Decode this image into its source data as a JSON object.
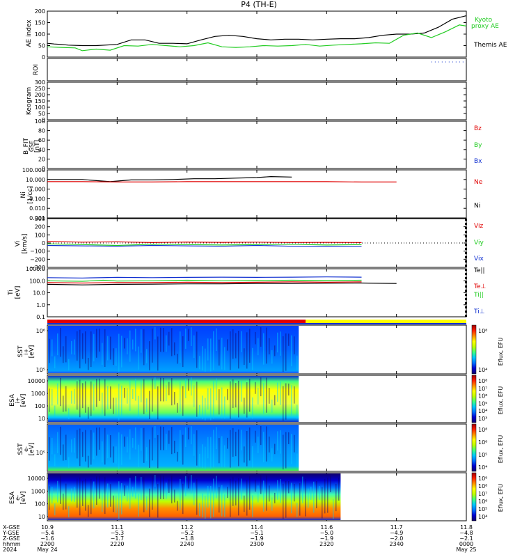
{
  "title": "P4 (TH-E)",
  "colors": {
    "black": "#000000",
    "red": "#e00000",
    "green": "#22cc22",
    "blue": "#1030d0",
    "yellow": "#ffff00",
    "cbar": [
      "#10006a",
      "#0000d0",
      "#0070ff",
      "#00c8ff",
      "#40ff80",
      "#c0ff00",
      "#ffff00",
      "#ff9000",
      "#ff2000",
      "#a00000"
    ]
  },
  "chart_data": [
    {
      "type": "line",
      "panel": "ae",
      "ylabel": "AE index",
      "ylim": [
        0,
        200
      ],
      "yticks": [
        "200",
        "150",
        "100",
        "50",
        "0"
      ],
      "legend": [
        "Kyoto",
        "proxy AE",
        "Themis AE"
      ],
      "series": [
        {
          "name": "Themis AE",
          "color": "#000000",
          "x": [
            0,
            0.1,
            0.2,
            0.3,
            0.5,
            0.7,
            1.0,
            1.2,
            1.4,
            1.6,
            1.8,
            2.0,
            2.2,
            2.4,
            2.6,
            2.8,
            3.0,
            3.2,
            3.4,
            3.6,
            3.8,
            4.0,
            4.2,
            4.4,
            4.6,
            4.8,
            5.0,
            5.2,
            5.4,
            5.6,
            5.8,
            6.0
          ],
          "y": [
            60,
            57,
            55,
            52,
            50,
            50,
            55,
            75,
            75,
            60,
            60,
            58,
            75,
            90,
            95,
            90,
            80,
            75,
            78,
            78,
            75,
            78,
            80,
            80,
            85,
            95,
            100,
            100,
            105,
            130,
            165,
            180
          ]
        },
        {
          "name": "proxy AE",
          "color": "#22cc22",
          "x": [
            0,
            0.2,
            0.4,
            0.5,
            0.7,
            0.9,
            1.1,
            1.3,
            1.5,
            1.7,
            1.9,
            2.1,
            2.3,
            2.5,
            2.7,
            2.9,
            3.1,
            3.3,
            3.5,
            3.7,
            3.9,
            4.1,
            4.3,
            4.5,
            4.7,
            4.9,
            5.1,
            5.3,
            5.5,
            5.7,
            5.9,
            6.0
          ],
          "y": [
            45,
            42,
            40,
            28,
            35,
            30,
            50,
            48,
            55,
            50,
            45,
            50,
            62,
            45,
            42,
            45,
            50,
            48,
            50,
            55,
            48,
            52,
            55,
            58,
            62,
            60,
            95,
            105,
            85,
            110,
            140,
            135
          ]
        }
      ]
    },
    {
      "type": "line",
      "panel": "roi",
      "ylabel": "ROI",
      "dotted_segment": [
        5.5,
        6.0
      ]
    },
    {
      "type": "line",
      "panel": "keogram",
      "ylabel": "Keogram",
      "ylim": [
        0,
        300
      ],
      "yticks": [
        "300",
        "250",
        "200",
        "150",
        "100",
        "50",
        "0"
      ]
    },
    {
      "type": "line",
      "panel": "bfit",
      "ylabel": "B_FIT GSE [nT]",
      "ylim": [
        0,
        100
      ],
      "yticks": [
        "100",
        "80",
        "60",
        "40",
        "20",
        "0"
      ],
      "legend": [
        "Bz",
        "By",
        "Bx"
      ]
    },
    {
      "type": "line",
      "panel": "ni",
      "ylabel": "Ni [1/cc]",
      "yscale": "log",
      "yticks": [
        "100.000",
        "10.000",
        "1.000",
        "0.100",
        "0.010",
        "0.001"
      ],
      "legend": [
        "Ne",
        "Ni"
      ],
      "series": [
        {
          "name": "Ni",
          "color": "#000000",
          "x": [
            0,
            0.5,
            0.9,
            1.2,
            1.5,
            1.8,
            2.1,
            2.4,
            2.7,
            3.0,
            3.2,
            3.5
          ],
          "y": [
            10,
            10,
            6,
            9,
            9,
            10,
            12,
            12,
            14,
            16,
            20,
            18
          ]
        },
        {
          "name": "Ne",
          "color": "#e00000",
          "x": [
            0,
            0.5,
            1.0,
            1.5,
            2.0,
            2.5,
            3.0,
            3.5,
            4.0,
            4.5,
            5.0
          ],
          "y": [
            6,
            6,
            5.5,
            5.5,
            6,
            6,
            6,
            6,
            6,
            5.5,
            5.5
          ]
        }
      ]
    },
    {
      "type": "line",
      "panel": "vi",
      "ylabel": "Vi [km/s]",
      "ylim": [
        -300,
        300
      ],
      "yticks": [
        "300",
        "200",
        "100",
        "0",
        "−100",
        "−200",
        "−300"
      ],
      "legend": [
        "Viz",
        "Viy",
        "Vix"
      ],
      "series": [
        {
          "name": "Viz",
          "color": "#e00000",
          "x": [
            0,
            0.5,
            1.0,
            1.5,
            2.0,
            2.5,
            3.0,
            3.5,
            4.0,
            4.5
          ],
          "y": [
            20,
            10,
            15,
            5,
            12,
            8,
            10,
            6,
            8,
            5
          ]
        },
        {
          "name": "Viy",
          "color": "#22cc22",
          "x": [
            0,
            0.5,
            1.0,
            1.5,
            2.0,
            2.5,
            3.0,
            3.5,
            4.0,
            4.5
          ],
          "y": [
            -10,
            -20,
            -30,
            -15,
            -20,
            -25,
            -20,
            -15,
            -25,
            -20
          ]
        },
        {
          "name": "Vix",
          "color": "#1030d0",
          "x": [
            0,
            0.5,
            1.0,
            1.5,
            2.0,
            2.5,
            3.0,
            3.5,
            4.0,
            4.5
          ],
          "y": [
            -30,
            -35,
            -40,
            -30,
            -35,
            -40,
            -30,
            -40,
            -45,
            -40
          ]
        }
      ]
    },
    {
      "type": "line",
      "panel": "ti",
      "ylabel": "Ti [eV]",
      "yscale": "log",
      "yticks": [
        "1000.0",
        "100.0",
        "10.0",
        "1.0",
        "0.1"
      ],
      "legend": [
        "Te||",
        "Te⊥",
        "Ti||",
        "Ti⊥"
      ],
      "series": [
        {
          "name": "Ti⊥",
          "color": "#1030d0",
          "x": [
            0,
            0.5,
            1.0,
            1.5,
            2.0,
            2.5,
            3.0,
            3.5,
            4.0,
            4.5
          ],
          "y": [
            180,
            170,
            190,
            180,
            190,
            200,
            190,
            200,
            210,
            200
          ]
        },
        {
          "name": "Ti||",
          "color": "#22cc22",
          "x": [
            0,
            0.5,
            0.8,
            1.0,
            1.5,
            2.0,
            2.5,
            3.0,
            3.5,
            4.0,
            4.5
          ],
          "y": [
            100,
            90,
            110,
            95,
            100,
            110,
            100,
            105,
            110,
            105,
            110
          ]
        },
        {
          "name": "Te⊥",
          "color": "#e00000",
          "x": [
            0,
            0.5,
            1.0,
            1.5,
            2.0,
            2.5,
            3.0,
            3.5,
            4.0,
            4.5
          ],
          "y": [
            70,
            65,
            70,
            70,
            75,
            70,
            75,
            80,
            75,
            80
          ]
        },
        {
          "name": "Te||",
          "color": "#000000",
          "x": [
            0,
            0.5,
            1.0,
            1.5,
            2.0,
            2.5,
            3.0,
            3.5,
            4.0,
            4.5,
            5.0
          ],
          "y": [
            50,
            45,
            50,
            52,
            55,
            55,
            60,
            60,
            62,
            65,
            60
          ]
        }
      ]
    },
    {
      "type": "heatmap",
      "panel": "sst_i",
      "ylabel": "SST i+ [eV]",
      "yticks": [
        "10⁶",
        "10⁵"
      ],
      "cbar": [
        "10⁸",
        "10⁴"
      ],
      "cbar_label": "Eflux, EFU"
    },
    {
      "type": "heatmap",
      "panel": "esa_i",
      "ylabel": "ESA i+ [eV]",
      "yticks": [
        "10000",
        "1000",
        "100",
        "10"
      ],
      "cbar": [
        "10⁸",
        "10⁷",
        "10⁶",
        "10⁵",
        "10⁴",
        "10³"
      ],
      "cbar_label": "Eflux, EFU"
    },
    {
      "type": "heatmap",
      "panel": "sst_e",
      "ylabel": "SST e- [eV]",
      "yticks": [
        "10⁵"
      ],
      "cbar": [
        "10⁸",
        "10⁶",
        "10⁵",
        "10⁴"
      ],
      "cbar_label": "Eflux, EFU"
    },
    {
      "type": "heatmap",
      "panel": "esa_e",
      "ylabel": "ESA e- [eV]",
      "yticks": [
        "10000",
        "1000",
        "100",
        "10"
      ],
      "cbar": [
        "10⁹",
        "10⁸",
        "10⁷",
        "10⁶",
        "10⁵",
        "10⁴"
      ],
      "cbar_label": "Eflux, EFU"
    }
  ],
  "legend_labels": {
    "kyoto": "Kyoto",
    "proxy": "proxy AE",
    "themis": "Themis AE",
    "bz": "Bz",
    "by": "By",
    "bx": "Bx",
    "ne": "Ne",
    "ni": "Ni",
    "viz": "Viz",
    "viy": "Viy",
    "vix": "Vix",
    "tepar": "Te||",
    "teperp": "Te⊥",
    "tipar": "Ti||",
    "tiperp": "Ti⊥"
  },
  "axis_labels": {
    "ae": "AE index",
    "roi": "ROI",
    "keogram": "Keogram",
    "bfit1": "B_FIT",
    "bfit2": "GSE",
    "bfit3": "[nT]",
    "ni1": "Ni",
    "ni2": "[1/cc]",
    "vi1": "Vi",
    "vi2": "[km/s]",
    "ti1": "Ti",
    "ti2": "[eV]",
    "ssti1": "SST",
    "ssti2": "i+",
    "ssti3": "[eV]",
    "esai1": "ESA",
    "esai2": "i+",
    "esai3": "[eV]",
    "sste1": "SST",
    "sste2": "e-",
    "sste3": "[eV]",
    "esae1": "ESA",
    "esae2": "e-",
    "esae3": "[eV]",
    "cbar": "Eflux, EFU"
  },
  "footer": {
    "row_labels": [
      "X-GSE",
      "Y-GSE",
      "Z-GSE",
      "hhmm",
      "2024"
    ],
    "columns": [
      {
        "x": 0.0,
        "v": [
          "10.9",
          "−5.4",
          "−1.6",
          "2200",
          "May 24"
        ]
      },
      {
        "x": 1.0,
        "v": [
          "11.1",
          "−5.3",
          "−1.7",
          "2220",
          ""
        ]
      },
      {
        "x": 2.0,
        "v": [
          "11.2",
          "−5.2",
          "−1.8",
          "2240",
          ""
        ]
      },
      {
        "x": 3.0,
        "v": [
          "11.4",
          "−5.1",
          "−1.9",
          "2300",
          ""
        ]
      },
      {
        "x": 4.0,
        "v": [
          "11.6",
          "−5.0",
          "−1.9",
          "2320",
          ""
        ]
      },
      {
        "x": 5.0,
        "v": [
          "11.7",
          "−4.9",
          "−2.0",
          "2340",
          ""
        ]
      },
      {
        "x": 6.0,
        "v": [
          "11.8",
          "−4.8",
          "−2.1",
          "0000",
          "May 25"
        ]
      }
    ]
  }
}
